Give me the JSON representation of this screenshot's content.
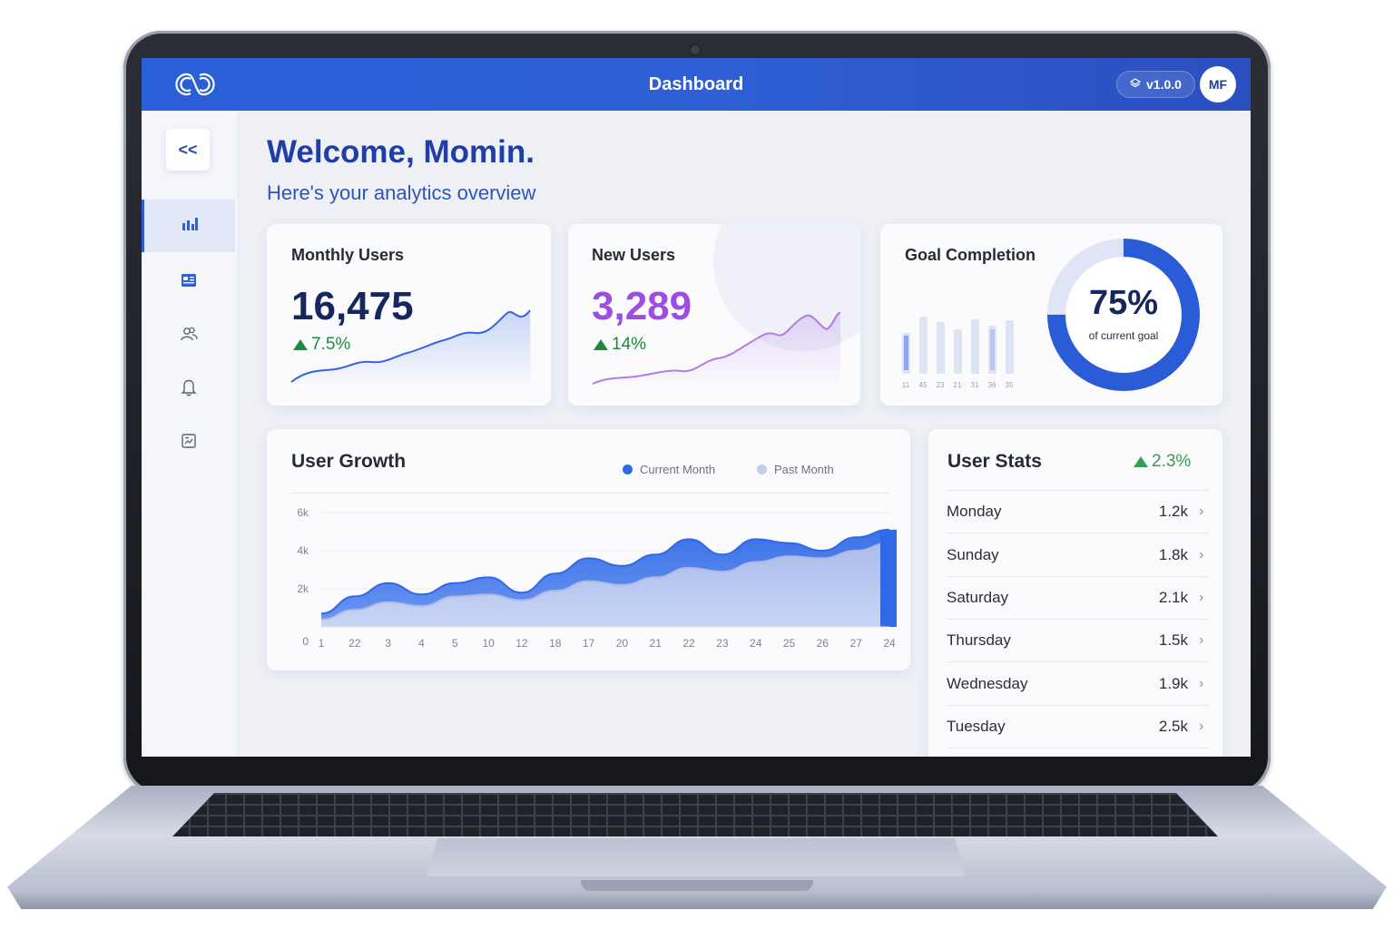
{
  "topbar": {
    "title": "Dashboard",
    "version": "v1.0.0",
    "avatar_initials": "MF"
  },
  "sidebar": {
    "collapse_label": "<<",
    "items": [
      {
        "icon": "bar-chart-icon",
        "active": true
      },
      {
        "icon": "newspaper-icon",
        "active": false
      },
      {
        "icon": "users-icon",
        "active": false
      },
      {
        "icon": "bell-icon",
        "active": false
      },
      {
        "icon": "report-icon",
        "active": false
      }
    ]
  },
  "header": {
    "welcome": "Welcome, Momin.",
    "subtitle": "Here's your analytics overview"
  },
  "monthly_users": {
    "title": "Monthly Users",
    "value": "16,475",
    "delta": "7.5%",
    "value_color": "#17265e"
  },
  "new_users": {
    "title": "New Users",
    "value": "3,289",
    "delta": "14%",
    "value_color": "#9b4ee0"
  },
  "goal_completion": {
    "title": "Goal Completion",
    "percent": "75%",
    "caption": "of current goal",
    "progress": 0.75,
    "bar_labels": [
      "11",
      "45",
      "23",
      "21",
      "31",
      "36",
      "35"
    ]
  },
  "user_growth": {
    "title": "User Growth",
    "legend_current": "Current Month",
    "legend_past": "Past Month",
    "colors": {
      "current": "#2f6ae6",
      "past": "#c4ccec"
    }
  },
  "chart_data": {
    "type": "area",
    "title": "User Growth",
    "categories": [
      "1",
      "22",
      "3",
      "4",
      "5",
      "10",
      "12",
      "18",
      "17",
      "20",
      "21",
      "22",
      "23",
      "24",
      "25",
      "26",
      "27",
      "24"
    ],
    "y_ticks": [
      "0",
      "2k",
      "4k",
      "6k"
    ],
    "ylim": [
      0,
      6000
    ],
    "legend": "top-right",
    "series": [
      {
        "name": "Current Month",
        "values": [
          700,
          1600,
          2300,
          1700,
          2300,
          2600,
          1800,
          2800,
          3600,
          3200,
          3800,
          4600,
          3800,
          4600,
          4400,
          4000,
          4700,
          5100
        ]
      },
      {
        "name": "Past Month",
        "values": [
          400,
          900,
          1300,
          1100,
          1600,
          1700,
          1400,
          1900,
          2400,
          2200,
          2600,
          3100,
          2900,
          3400,
          3700,
          3600,
          4000,
          4400
        ]
      }
    ]
  },
  "user_stats": {
    "title": "User Stats",
    "delta": "2.3%",
    "rows": [
      {
        "day": "Monday",
        "value": "1.2k"
      },
      {
        "day": "Sunday",
        "value": "1.8k"
      },
      {
        "day": "Saturday",
        "value": "2.1k"
      },
      {
        "day": "Thursday",
        "value": "1.5k"
      },
      {
        "day": "Wednesday",
        "value": "1.9k"
      },
      {
        "day": "Tuesday",
        "value": "2.5k"
      }
    ]
  }
}
